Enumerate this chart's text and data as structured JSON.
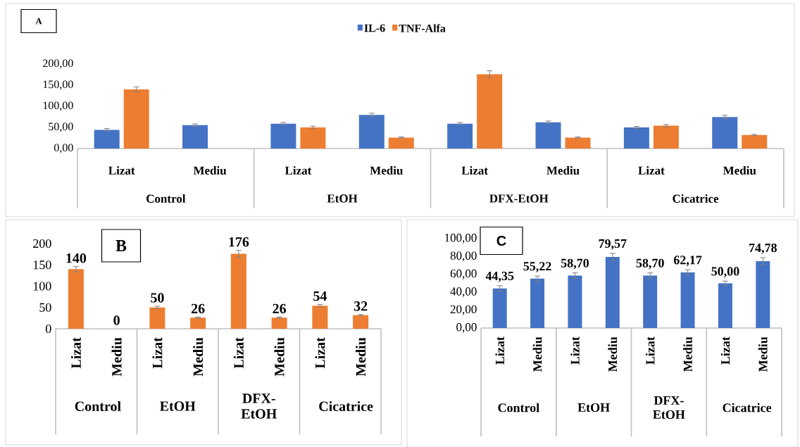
{
  "chart_data": [
    {
      "type": "bar",
      "title": "A",
      "categories": [
        "Lizat",
        "Mediu",
        "Lizat",
        "Mediu",
        "Lizat",
        "Mediu",
        "Lizat",
        "Mediu"
      ],
      "series": [
        {
          "name": "IL-6",
          "color": "#4472c4",
          "values": [
            44.35,
            55.22,
            58.7,
            79.57,
            58.7,
            62.17,
            50.0,
            74.78
          ],
          "errors": [
            3,
            3,
            3,
            4,
            3,
            3,
            2.5,
            4
          ]
        },
        {
          "name": "TNF-Alfa",
          "color": "#ed7d31",
          "values": [
            140,
            0,
            50,
            26,
            176,
            26,
            54,
            32
          ],
          "errors": [
            6,
            null,
            3,
            1.5,
            8,
            1.5,
            3,
            1.5
          ]
        }
      ],
      "ylim": [
        0,
        200
      ],
      "yticks": [
        {
          "value": 0,
          "label": "0,00"
        },
        {
          "value": 50,
          "label": "50,00"
        },
        {
          "value": 100,
          "label": "100,00"
        },
        {
          "value": 150,
          "label": "150,00"
        },
        {
          "value": 200,
          "label": "200,00"
        }
      ],
      "legend": "top",
      "annotations": [
        "Control",
        "EtOH",
        "DFX-EtOH",
        "Cicatrice"
      ]
    },
    {
      "type": "bar",
      "title": "B",
      "categories": [
        "Lizat",
        "Mediu",
        "Lizat",
        "Mediu",
        "Lizat",
        "Mediu",
        "Lizat",
        "Mediu"
      ],
      "series": [
        {
          "color": "#ed7d31",
          "values": [
            140,
            0,
            50,
            26,
            176,
            26,
            54,
            32
          ],
          "errors": [
            6,
            null,
            3,
            1.5,
            8,
            1.5,
            3,
            1.5
          ]
        }
      ],
      "ylim": [
        0,
        200
      ],
      "yticks": [
        0,
        50,
        100,
        150,
        200
      ],
      "data_labels": true,
      "annotations": [
        "Control",
        "EtOH",
        "DFX-EtOH",
        "Cicatrice"
      ]
    },
    {
      "type": "bar",
      "title": "C",
      "categories": [
        "Lizat",
        "Mediu",
        "Lizat",
        "Mediu",
        "Lizat",
        "Mediu",
        "Lizat",
        "Mediu"
      ],
      "series": [
        {
          "color": "#4472c4",
          "values": [
            44.35,
            55.22,
            58.7,
            79.57,
            58.7,
            62.17,
            50.0,
            74.78
          ],
          "errors": [
            3,
            3,
            3,
            4,
            3,
            3,
            2.5,
            4
          ],
          "value_labels": [
            "44,35",
            "55,22",
            "58,70",
            "79,57",
            "58,70",
            "62,17",
            "50,00",
            "74,78"
          ]
        }
      ],
      "ylim": [
        0,
        100
      ],
      "yticks": [
        {
          "value": 0,
          "label": "0,00"
        },
        {
          "value": 20,
          "label": "20,00"
        },
        {
          "value": 40,
          "label": "40,00"
        },
        {
          "value": 60,
          "label": "60,00"
        },
        {
          "value": 80,
          "label": "80,00"
        },
        {
          "value": 100,
          "label": "100,00"
        }
      ],
      "annotations": [
        "Control",
        "EtOH",
        "DFX-EtOH",
        "Cicatrice"
      ]
    }
  ]
}
